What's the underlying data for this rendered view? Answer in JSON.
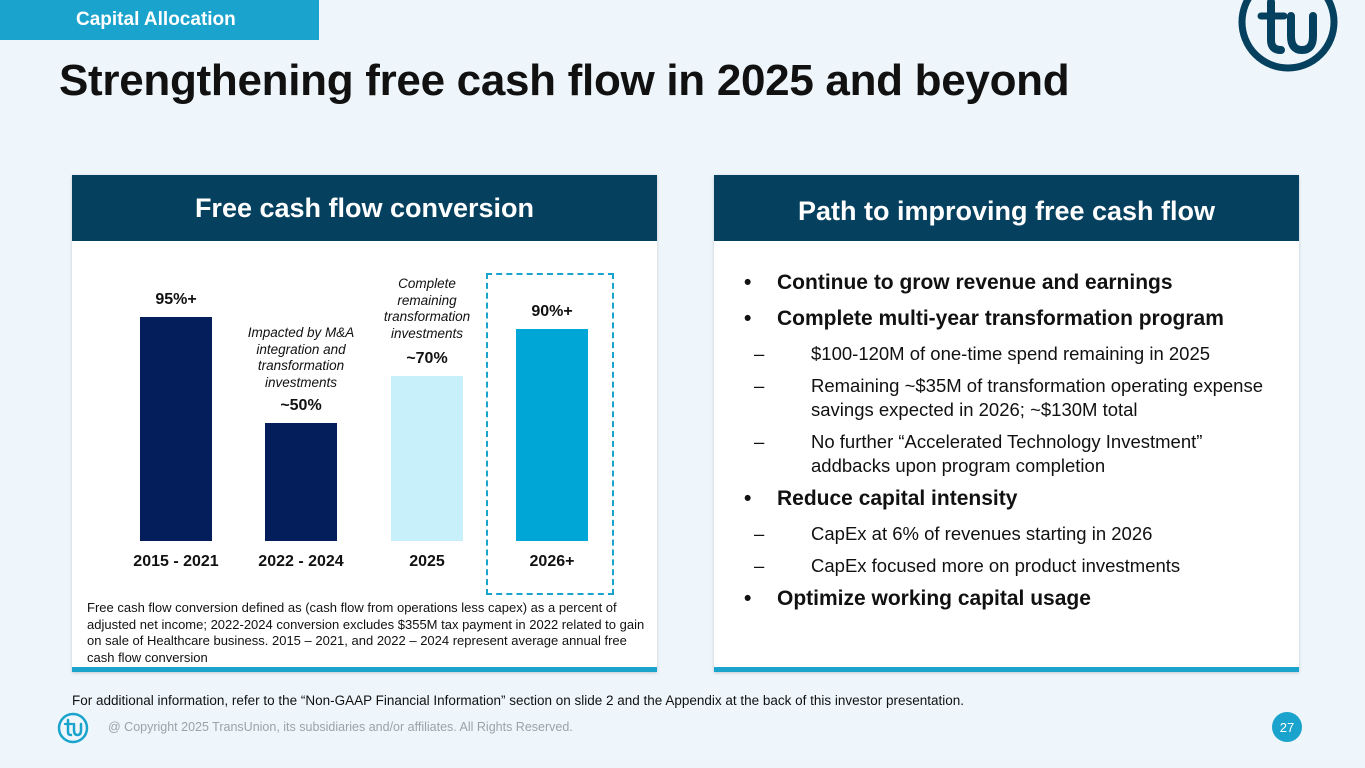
{
  "section_tag": "Capital Allocation",
  "title": "Strengthening free cash flow in 2025 and beyond",
  "left_panel": {
    "header": "Free cash flow conversion",
    "annotations": {
      "bar2": "Impacted by M&A integration and transformation investments",
      "bar3": "Complete remaining transformation investments"
    },
    "note": "Free cash flow conversion defined as (cash flow from operations less capex) as a percent of adjusted net income; 2022-2024 conversion excludes $355M tax payment in 2022 related to gain on sale of Healthcare business. 2015 – 2021, and 2022 – 2024 represent average annual free cash flow conversion"
  },
  "chart_data": {
    "type": "bar",
    "title": "Free cash flow conversion",
    "categories": [
      "2015 - 2021",
      "2022 - 2024",
      "2025",
      "2026+"
    ],
    "values": [
      95,
      50,
      70,
      90
    ],
    "data_labels": [
      "95%+",
      "~50%",
      "~70%",
      "90%+"
    ],
    "bar_colors": [
      "#041e5c",
      "#041e5c",
      "#c8f0fb",
      "#00a6d6"
    ],
    "ylim": [
      0,
      100
    ],
    "xlabel": "",
    "ylabel": "",
    "grid": false,
    "highlighted_category": "2026+"
  },
  "right_panel": {
    "header": "Path to improving free cash flow",
    "bullets": {
      "b1": "Continue to grow revenue and earnings",
      "b2": "Complete multi-year transformation program",
      "b2_sub1": "$100-120M of one-time spend remaining in 2025",
      "b2_sub2": "Remaining ~$35M of transformation operating expense savings expected in 2026; ~$130M total",
      "b2_sub3": "No further “Accelerated Technology Investment” addbacks upon program completion",
      "b3": "Reduce capital intensity",
      "b3_sub1": "CapEx at 6% of revenues starting in 2026",
      "b3_sub2": "CapEx focused more on product investments",
      "b4": "Optimize working capital usage"
    },
    "bullet_mark": "•",
    "dash_mark": "–"
  },
  "footnote": "For additional information, refer to the “Non-GAAP Financial Information” section on slide 2 and the Appendix at the back of this investor presentation.",
  "copyright": "@ Copyright 2025 TransUnion, its subsidiaries and/or affiliates.  All Rights Reserved.",
  "page_number": "27",
  "colors": {
    "accent": "#1aa3cc",
    "navy": "#05405f",
    "background": "#eef6fb"
  }
}
